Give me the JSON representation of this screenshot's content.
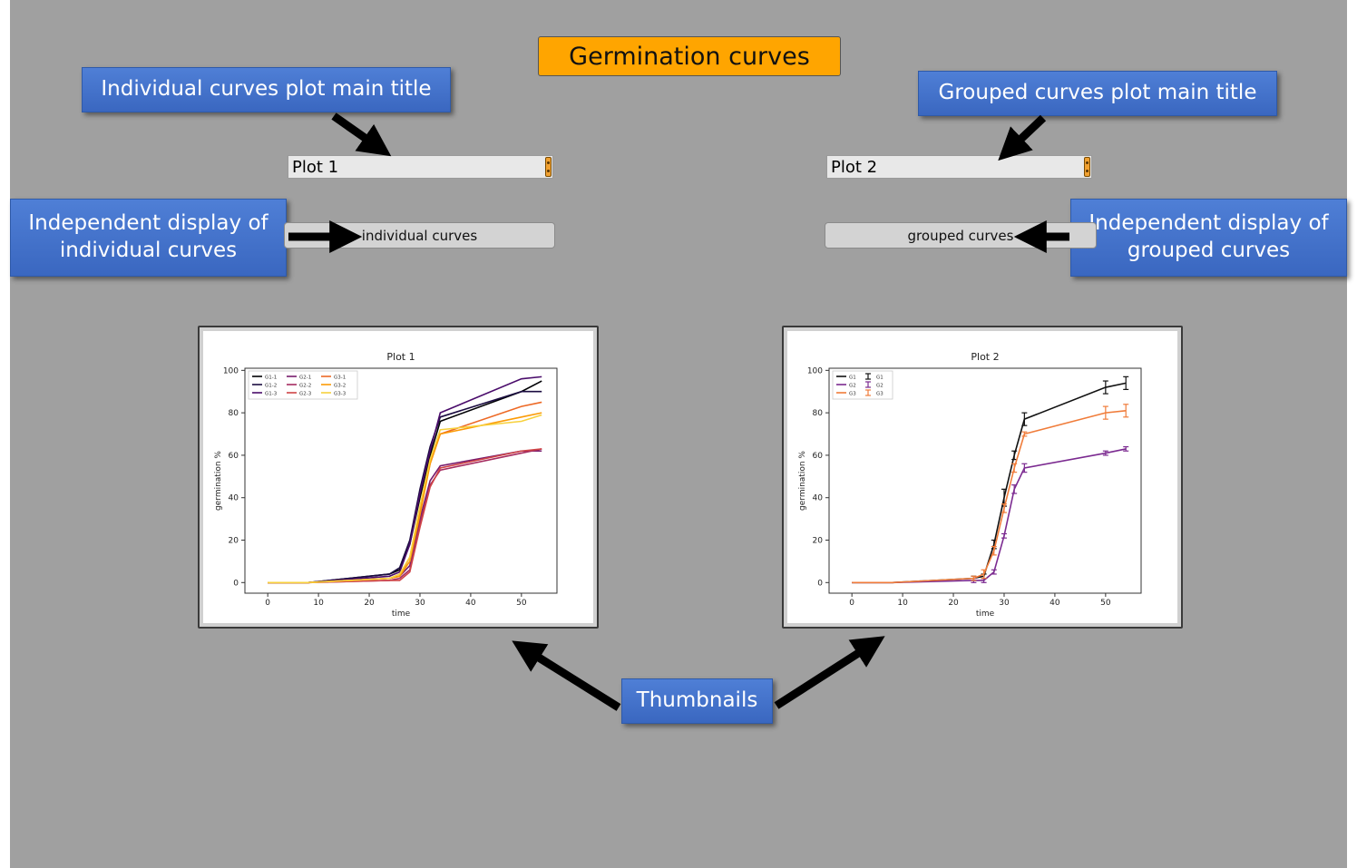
{
  "main_title": "Germination curves",
  "callouts": {
    "individual_title": "Individual curves plot main title",
    "grouped_title": "Grouped curves plot main title",
    "individual_display_line1": "Independent display of",
    "individual_display_line2": "individual curves",
    "grouped_display_line1": "Independent display of",
    "grouped_display_line2": "grouped curves",
    "thumbnails": "Thumbnails"
  },
  "inputs": {
    "plot1_title": "Plot 1",
    "plot2_title": "Plot 2"
  },
  "buttons": {
    "individual": "individual curves",
    "grouped": "grouped curves"
  },
  "colors": {
    "accent": "#ffa500",
    "callout": "#4472c4",
    "background": "#a0a0a0"
  },
  "chart_data": [
    {
      "type": "line",
      "title": "Plot 1",
      "xlabel": "time",
      "ylabel": "germination %",
      "xlim": [
        -4.5,
        57
      ],
      "ylim": [
        -5,
        101
      ],
      "xticks": [
        0,
        10,
        20,
        30,
        40,
        50
      ],
      "yticks": [
        0,
        20,
        40,
        60,
        80,
        100
      ],
      "legend": "top-left",
      "x": [
        0,
        8,
        24,
        26,
        28,
        30,
        32,
        34,
        50,
        54
      ],
      "series": [
        {
          "name": "G1-1",
          "color": "#000004",
          "values": [
            0,
            0,
            4,
            6,
            18,
            40,
            60,
            76,
            90,
            95
          ]
        },
        {
          "name": "G1-2",
          "color": "#1b0c41",
          "values": [
            0,
            0,
            4,
            7,
            20,
            44,
            64,
            78,
            90,
            90
          ]
        },
        {
          "name": "G1-3",
          "color": "#4a0c6b",
          "values": [
            0,
            0,
            3,
            5,
            18,
            42,
            62,
            80,
            96,
            97
          ]
        },
        {
          "name": "G2-1",
          "color": "#781c6d",
          "values": [
            0,
            0,
            2,
            3,
            8,
            30,
            48,
            55,
            62,
            62
          ]
        },
        {
          "name": "G2-2",
          "color": "#a52c60",
          "values": [
            0,
            0,
            1,
            2,
            6,
            28,
            46,
            53,
            61,
            63
          ]
        },
        {
          "name": "G2-3",
          "color": "#cf4446",
          "values": [
            0,
            0,
            1,
            1,
            5,
            26,
            45,
            54,
            62,
            63
          ]
        },
        {
          "name": "G3-1",
          "color": "#ed6925",
          "values": [
            0,
            0,
            2,
            3,
            12,
            34,
            56,
            70,
            83,
            85
          ]
        },
        {
          "name": "G3-2",
          "color": "#fb9b06",
          "values": [
            0,
            0,
            2,
            3,
            10,
            32,
            56,
            70,
            78,
            80
          ]
        },
        {
          "name": "G3-3",
          "color": "#f7d13d",
          "values": [
            0,
            0,
            2,
            4,
            12,
            36,
            58,
            72,
            76,
            79
          ]
        }
      ]
    },
    {
      "type": "line",
      "title": "Plot 2",
      "xlabel": "time",
      "ylabel": "germination %",
      "xlim": [
        -4.5,
        57
      ],
      "ylim": [
        -5,
        101
      ],
      "xticks": [
        0,
        10,
        20,
        30,
        40,
        50
      ],
      "yticks": [
        0,
        20,
        40,
        60,
        80,
        100
      ],
      "legend": "top-left",
      "x": [
        0,
        8,
        24,
        26,
        28,
        30,
        32,
        34,
        50,
        54
      ],
      "series": [
        {
          "name": "G1",
          "color": "#111111",
          "values": [
            0,
            0,
            2,
            3,
            18,
            40,
            60,
            77,
            92,
            94
          ],
          "errors": [
            0,
            0,
            1,
            1,
            2,
            4,
            2,
            3,
            3,
            3
          ]
        },
        {
          "name": "G2",
          "color": "#7b2a90",
          "values": [
            0,
            0,
            1,
            1,
            5,
            22,
            44,
            54,
            61,
            63
          ],
          "errors": [
            0,
            0,
            1,
            1,
            1,
            1,
            2,
            2,
            1,
            1
          ]
        },
        {
          "name": "G3",
          "color": "#f07c3a",
          "values": [
            0,
            0,
            2,
            4,
            15,
            35,
            54,
            70,
            80,
            81
          ],
          "errors": [
            0,
            0,
            1,
            2,
            2,
            2,
            2,
            1,
            3,
            3
          ]
        }
      ]
    }
  ]
}
